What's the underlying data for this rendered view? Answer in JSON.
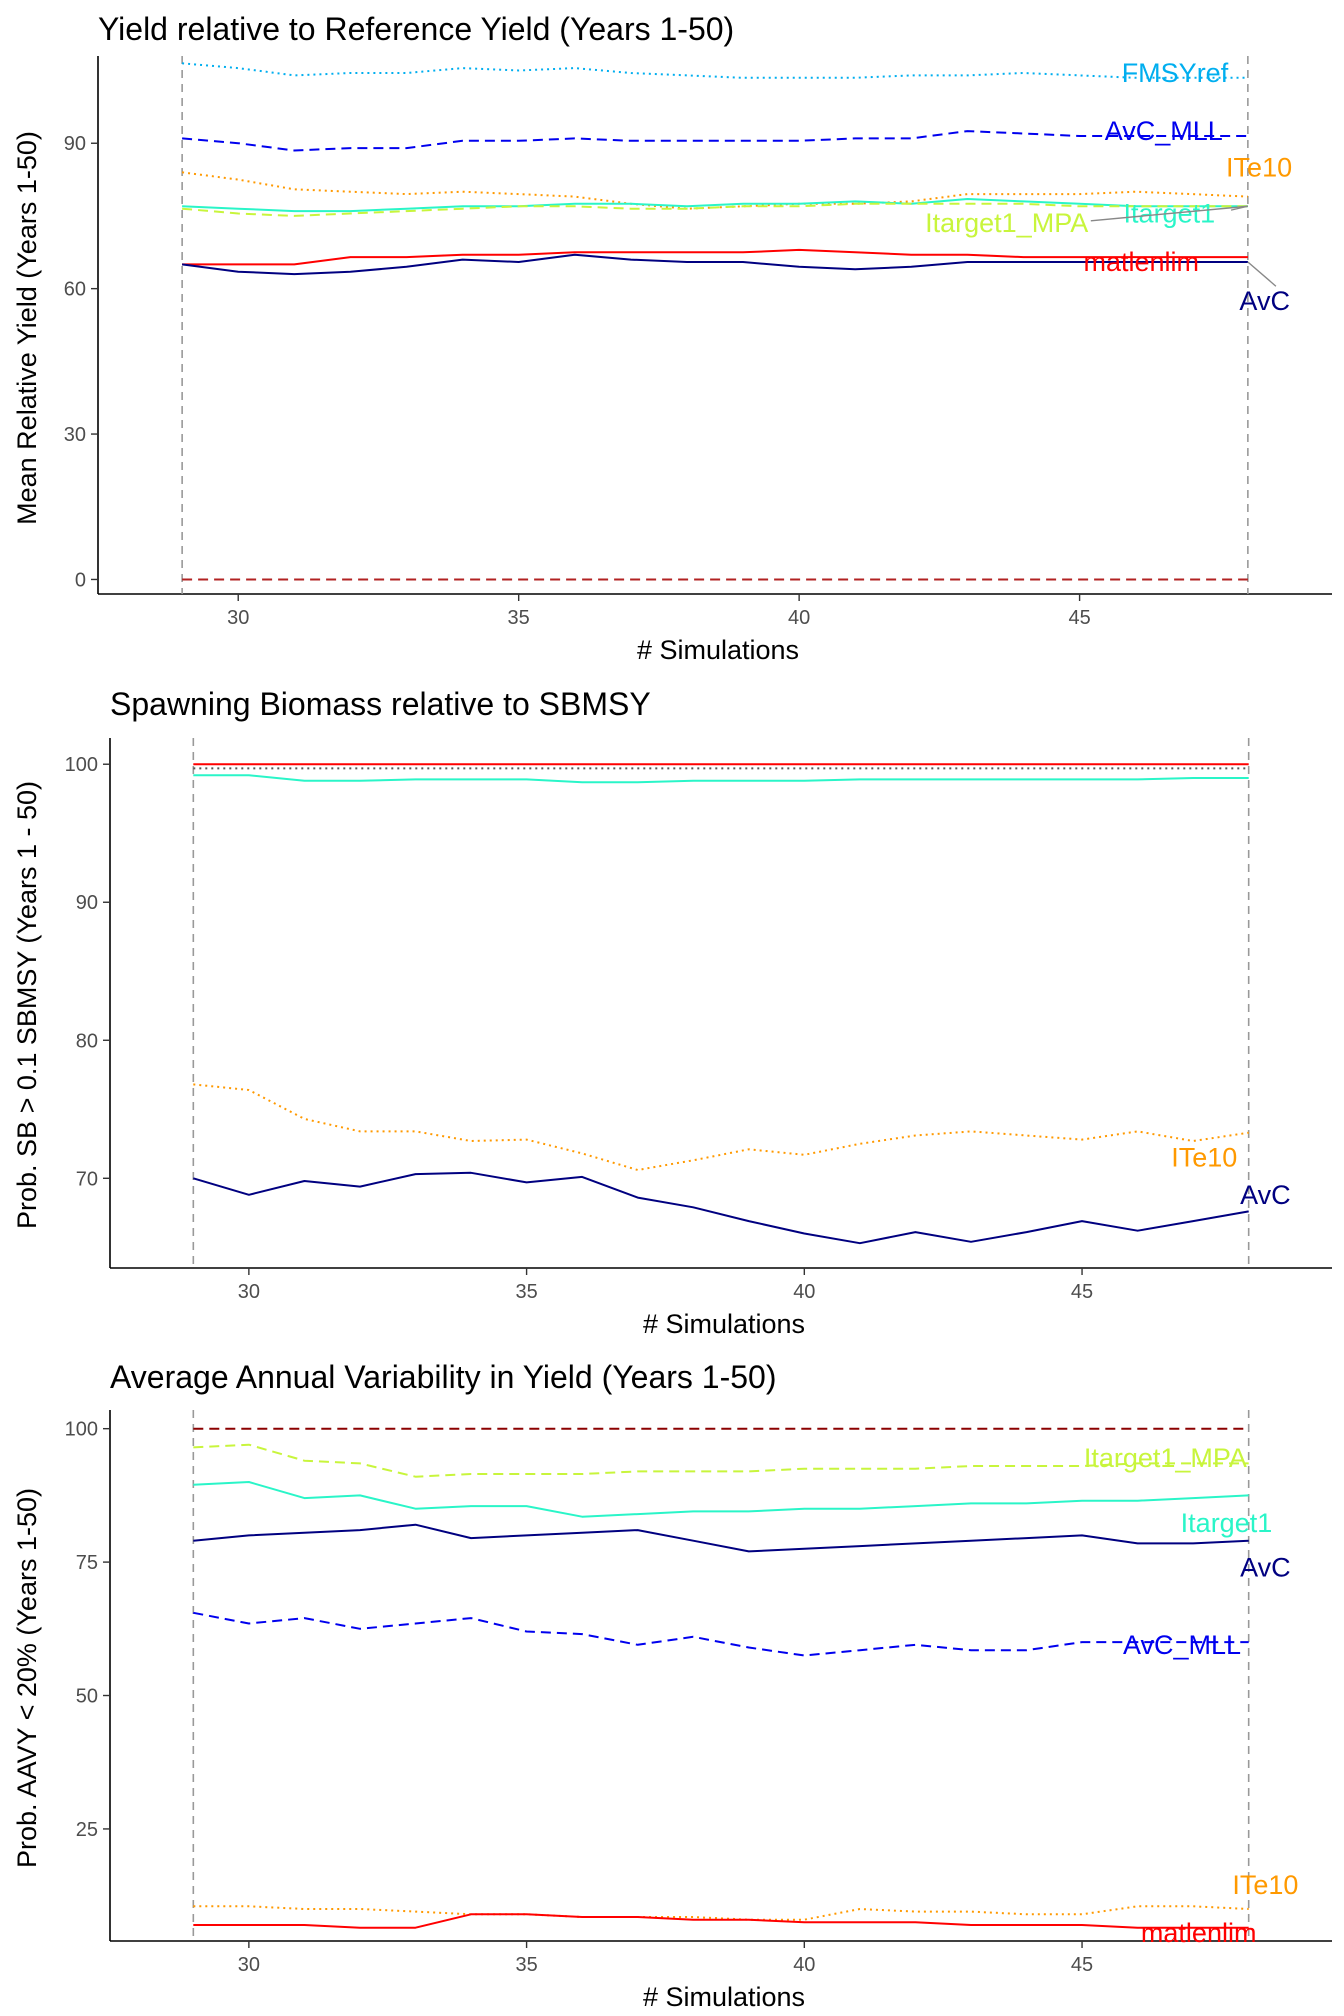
{
  "chart_data": [
    {
      "type": "line",
      "title": "Yield relative to Reference Yield (Years 1-50)",
      "xlabel": "# Simulations",
      "ylabel": "Mean Relative Yield (Years 1-50)",
      "xlim": [
        27.5,
        49.5
      ],
      "ylim": [
        -3,
        108
      ],
      "xticks": [
        30,
        35,
        40,
        45
      ],
      "yticks": [
        0,
        30,
        60,
        90
      ],
      "vlines": [
        29,
        48
      ],
      "x": [
        29,
        30,
        31,
        32,
        33,
        34,
        35,
        36,
        37,
        38,
        39,
        40,
        41,
        42,
        43,
        44,
        45,
        46,
        47,
        48
      ],
      "series": [
        {
          "name": "FMSYref",
          "color": "#00aeef",
          "dash": "dotted",
          "values": [
            106.5,
            105.5,
            104,
            104.5,
            104.5,
            105.5,
            105,
            105.5,
            104.5,
            104,
            103.5,
            103.5,
            103.5,
            104,
            104,
            104.5,
            104,
            103.5,
            103.5,
            103.5
          ]
        },
        {
          "name": "AvC_MLL",
          "color": "#0000ee",
          "dash": "dashed",
          "values": [
            91,
            90,
            88.5,
            89,
            89,
            90.5,
            90.5,
            91,
            90.5,
            90.5,
            90.5,
            90.5,
            91,
            91,
            92.5,
            92,
            91.5,
            91.5,
            91.5,
            91.5
          ]
        },
        {
          "name": "ITe10",
          "color": "#ff9900",
          "dash": "dotted",
          "values": [
            84,
            82.5,
            80.5,
            80,
            79.5,
            80,
            79.5,
            79,
            77.5,
            76.5,
            77,
            77.5,
            77.5,
            78,
            79.5,
            79.5,
            79.5,
            80,
            79.5,
            79
          ]
        },
        {
          "name": "Itarget1",
          "color": "#2af5c8",
          "dash": "solid",
          "values": [
            77,
            76.5,
            76,
            76,
            76.5,
            77,
            77,
            77.5,
            77.5,
            77,
            77.5,
            77.5,
            78,
            77.5,
            78.5,
            78,
            77.5,
            77,
            77,
            77
          ]
        },
        {
          "name": "Itarget1_MPA",
          "color": "#c8f53c",
          "dash": "dashed",
          "values": [
            76.5,
            75.5,
            75,
            75.5,
            76,
            76.5,
            77,
            77,
            76.5,
            76.5,
            77,
            77,
            77.5,
            77.5,
            77.5,
            77.5,
            77,
            77,
            77,
            77
          ]
        },
        {
          "name": "matlenlim",
          "color": "#ff0000",
          "dash": "solid",
          "values": [
            65,
            65,
            65,
            66.5,
            66.5,
            67,
            67,
            67.5,
            67.5,
            67.5,
            67.5,
            68,
            67.5,
            67,
            67,
            66.5,
            66.5,
            66.5,
            66.5,
            66.5
          ]
        },
        {
          "name": "AvC",
          "color": "#000080",
          "dash": "solid",
          "values": [
            65,
            63.5,
            63,
            63.5,
            64.5,
            66,
            65.5,
            67,
            66,
            65.5,
            65.5,
            64.5,
            64,
            64.5,
            65.5,
            65.5,
            65.5,
            65.5,
            65.5,
            65.5
          ]
        },
        {
          "name": "",
          "color": "#b22222",
          "dash": "dashed",
          "values": [
            0,
            0,
            0,
            0,
            0,
            0,
            0,
            0,
            0,
            0,
            0,
            0,
            0,
            0,
            0,
            0,
            0,
            0,
            0,
            0
          ]
        }
      ],
      "labels": [
        {
          "text": "FMSYref",
          "color": "#00aeef",
          "x": 46.7,
          "y": 104.5
        },
        {
          "text": "AvC_MLL",
          "color": "#0000ee",
          "x": 46.5,
          "y": 92.5
        },
        {
          "text": "ITe10",
          "color": "#ff9900",
          "x": 48.2,
          "y": 85
        },
        {
          "text": "Itarget1",
          "color": "#2af5c8",
          "x": 46.6,
          "y": 75.5
        },
        {
          "text": "Itarget1_MPA",
          "color": "#c8f53c",
          "x": 43.7,
          "y": 73.5
        },
        {
          "text": "matlenlim",
          "color": "#ff0000",
          "x": 46.1,
          "y": 65.5
        },
        {
          "text": "AvC",
          "color": "#000080",
          "x": 48.3,
          "y": 57.5
        }
      ]
    },
    {
      "type": "line",
      "title": "Spawning Biomass relative to SBMSY",
      "xlabel": "# Simulations",
      "ylabel": "Prob. SB > 0.1 SBMSY (Years 1 - 50)",
      "xlim": [
        27.5,
        49.5
      ],
      "ylim": [
        63.5,
        101.9
      ],
      "xticks": [
        30,
        35,
        40,
        45
      ],
      "yticks": [
        70,
        80,
        90,
        100
      ],
      "vlines": [
        29,
        48
      ],
      "x": [
        29,
        30,
        31,
        32,
        33,
        34,
        35,
        36,
        37,
        38,
        39,
        40,
        41,
        42,
        43,
        44,
        45,
        46,
        47,
        48
      ],
      "series": [
        {
          "name": "matlenlim",
          "color": "#ff0000",
          "dash": "solid",
          "values": [
            100,
            100,
            100,
            100,
            100,
            100,
            100,
            100,
            100,
            100,
            100,
            100,
            100,
            100,
            100,
            100,
            100,
            100,
            100,
            100
          ]
        },
        {
          "name": "",
          "color": "#555555",
          "dash": "dotted",
          "values": [
            99.7,
            99.7,
            99.7,
            99.7,
            99.7,
            99.7,
            99.7,
            99.7,
            99.7,
            99.7,
            99.7,
            99.7,
            99.7,
            99.7,
            99.7,
            99.7,
            99.7,
            99.7,
            99.7,
            99.7
          ]
        },
        {
          "name": "Itarget1",
          "color": "#2af5c8",
          "dash": "solid",
          "values": [
            99.2,
            99.2,
            98.8,
            98.8,
            98.9,
            98.9,
            98.9,
            98.7,
            98.7,
            98.8,
            98.8,
            98.8,
            98.9,
            98.9,
            98.9,
            98.9,
            98.9,
            98.9,
            99.0,
            99.0
          ]
        },
        {
          "name": "ITe10",
          "color": "#ff9900",
          "dash": "dotted",
          "values": [
            76.8,
            76.4,
            74.3,
            73.4,
            73.4,
            72.7,
            72.8,
            71.8,
            70.6,
            71.3,
            72.1,
            71.7,
            72.5,
            73.1,
            73.4,
            73.1,
            72.8,
            73.4,
            72.7,
            73.3
          ]
        },
        {
          "name": "AvC",
          "color": "#000080",
          "dash": "solid",
          "values": [
            70,
            68.8,
            69.8,
            69.4,
            70.3,
            70.4,
            69.7,
            70.1,
            68.6,
            67.9,
            66.9,
            66,
            65.3,
            66.1,
            65.4,
            66.1,
            66.9,
            66.2,
            66.9,
            67.6
          ]
        }
      ],
      "labels": [
        {
          "text": "ITe10",
          "color": "#ff9900",
          "x": 47.2,
          "y": 71.5
        },
        {
          "text": "AvC",
          "color": "#000080",
          "x": 48.3,
          "y": 68.8
        }
      ]
    },
    {
      "type": "line",
      "title": "Average Annual Variability in Yield (Years 1-50)",
      "xlabel": "# Simulations",
      "ylabel": "Prob. AAVY < 20% (Years 1-50)",
      "xlim": [
        27.5,
        49.5
      ],
      "ylim": [
        4,
        103.5
      ],
      "xticks": [
        30,
        35,
        40,
        45
      ],
      "yticks": [
        25,
        50,
        75,
        100
      ],
      "vlines": [
        29,
        48
      ],
      "x": [
        29,
        30,
        31,
        32,
        33,
        34,
        35,
        36,
        37,
        38,
        39,
        40,
        41,
        42,
        43,
        44,
        45,
        46,
        47,
        48
      ],
      "series": [
        {
          "name": "",
          "color": "#8b0000",
          "dash": "dashed",
          "values": [
            100,
            100,
            100,
            100,
            100,
            100,
            100,
            100,
            100,
            100,
            100,
            100,
            100,
            100,
            100,
            100,
            100,
            100,
            100,
            100
          ]
        },
        {
          "name": "Itarget1_MPA",
          "color": "#c8f53c",
          "dash": "dashed",
          "values": [
            96.5,
            97,
            94,
            93.5,
            91,
            91.5,
            91.5,
            91.5,
            92,
            92,
            92,
            92.5,
            92.5,
            92.5,
            93,
            93,
            93,
            93.5,
            93.5,
            93.5
          ]
        },
        {
          "name": "Itarget1",
          "color": "#2af5c8",
          "dash": "solid",
          "values": [
            89.5,
            90,
            87,
            87.5,
            85,
            85.5,
            85.5,
            83.5,
            84,
            84.5,
            84.5,
            85,
            85,
            85.5,
            86,
            86,
            86.5,
            86.5,
            87,
            87.5
          ]
        },
        {
          "name": "AvC",
          "color": "#000080",
          "dash": "solid",
          "values": [
            79,
            80,
            80.5,
            81,
            82,
            79.5,
            80,
            80.5,
            81,
            79,
            77,
            77.5,
            78,
            78.5,
            79,
            79.5,
            80,
            78.5,
            78.5,
            79
          ]
        },
        {
          "name": "AvC_MLL",
          "color": "#0000ee",
          "dash": "dashed",
          "values": [
            65.5,
            63.5,
            64.5,
            62.5,
            63.5,
            64.5,
            62,
            61.5,
            59.5,
            61,
            59,
            57.5,
            58.5,
            59.5,
            58.5,
            58.5,
            60,
            60,
            60,
            60
          ]
        },
        {
          "name": "ITe10",
          "color": "#ff9900",
          "dash": "dotted",
          "values": [
            10.5,
            10.5,
            10,
            10,
            9.5,
            9,
            9,
            8.5,
            8.5,
            8.5,
            8,
            8,
            10,
            9.5,
            9.5,
            9,
            9,
            10.5,
            10.5,
            10
          ]
        },
        {
          "name": "matlenlim",
          "color": "#ff0000",
          "dash": "solid",
          "values": [
            7,
            7,
            7,
            6.5,
            6.5,
            9,
            9,
            8.5,
            8.5,
            8,
            8,
            7.5,
            7.5,
            7.5,
            7,
            7,
            7,
            6.5,
            6.5,
            6.5
          ]
        }
      ],
      "labels": [
        {
          "text": "Itarget1_MPA",
          "color": "#c8f53c",
          "x": 46.5,
          "y": 94.5
        },
        {
          "text": "Itarget1",
          "color": "#2af5c8",
          "x": 47.6,
          "y": 82.3
        },
        {
          "text": "AvC",
          "color": "#000080",
          "x": 48.3,
          "y": 74
        },
        {
          "text": "AvC_MLL",
          "color": "#0000ee",
          "x": 46.8,
          "y": 59.5
        },
        {
          "text": "ITe10",
          "color": "#ff9900",
          "x": 48.3,
          "y": 14.5
        },
        {
          "text": "matlenlim",
          "color": "#ff0000",
          "x": 47.1,
          "y": 5.5
        }
      ]
    }
  ]
}
